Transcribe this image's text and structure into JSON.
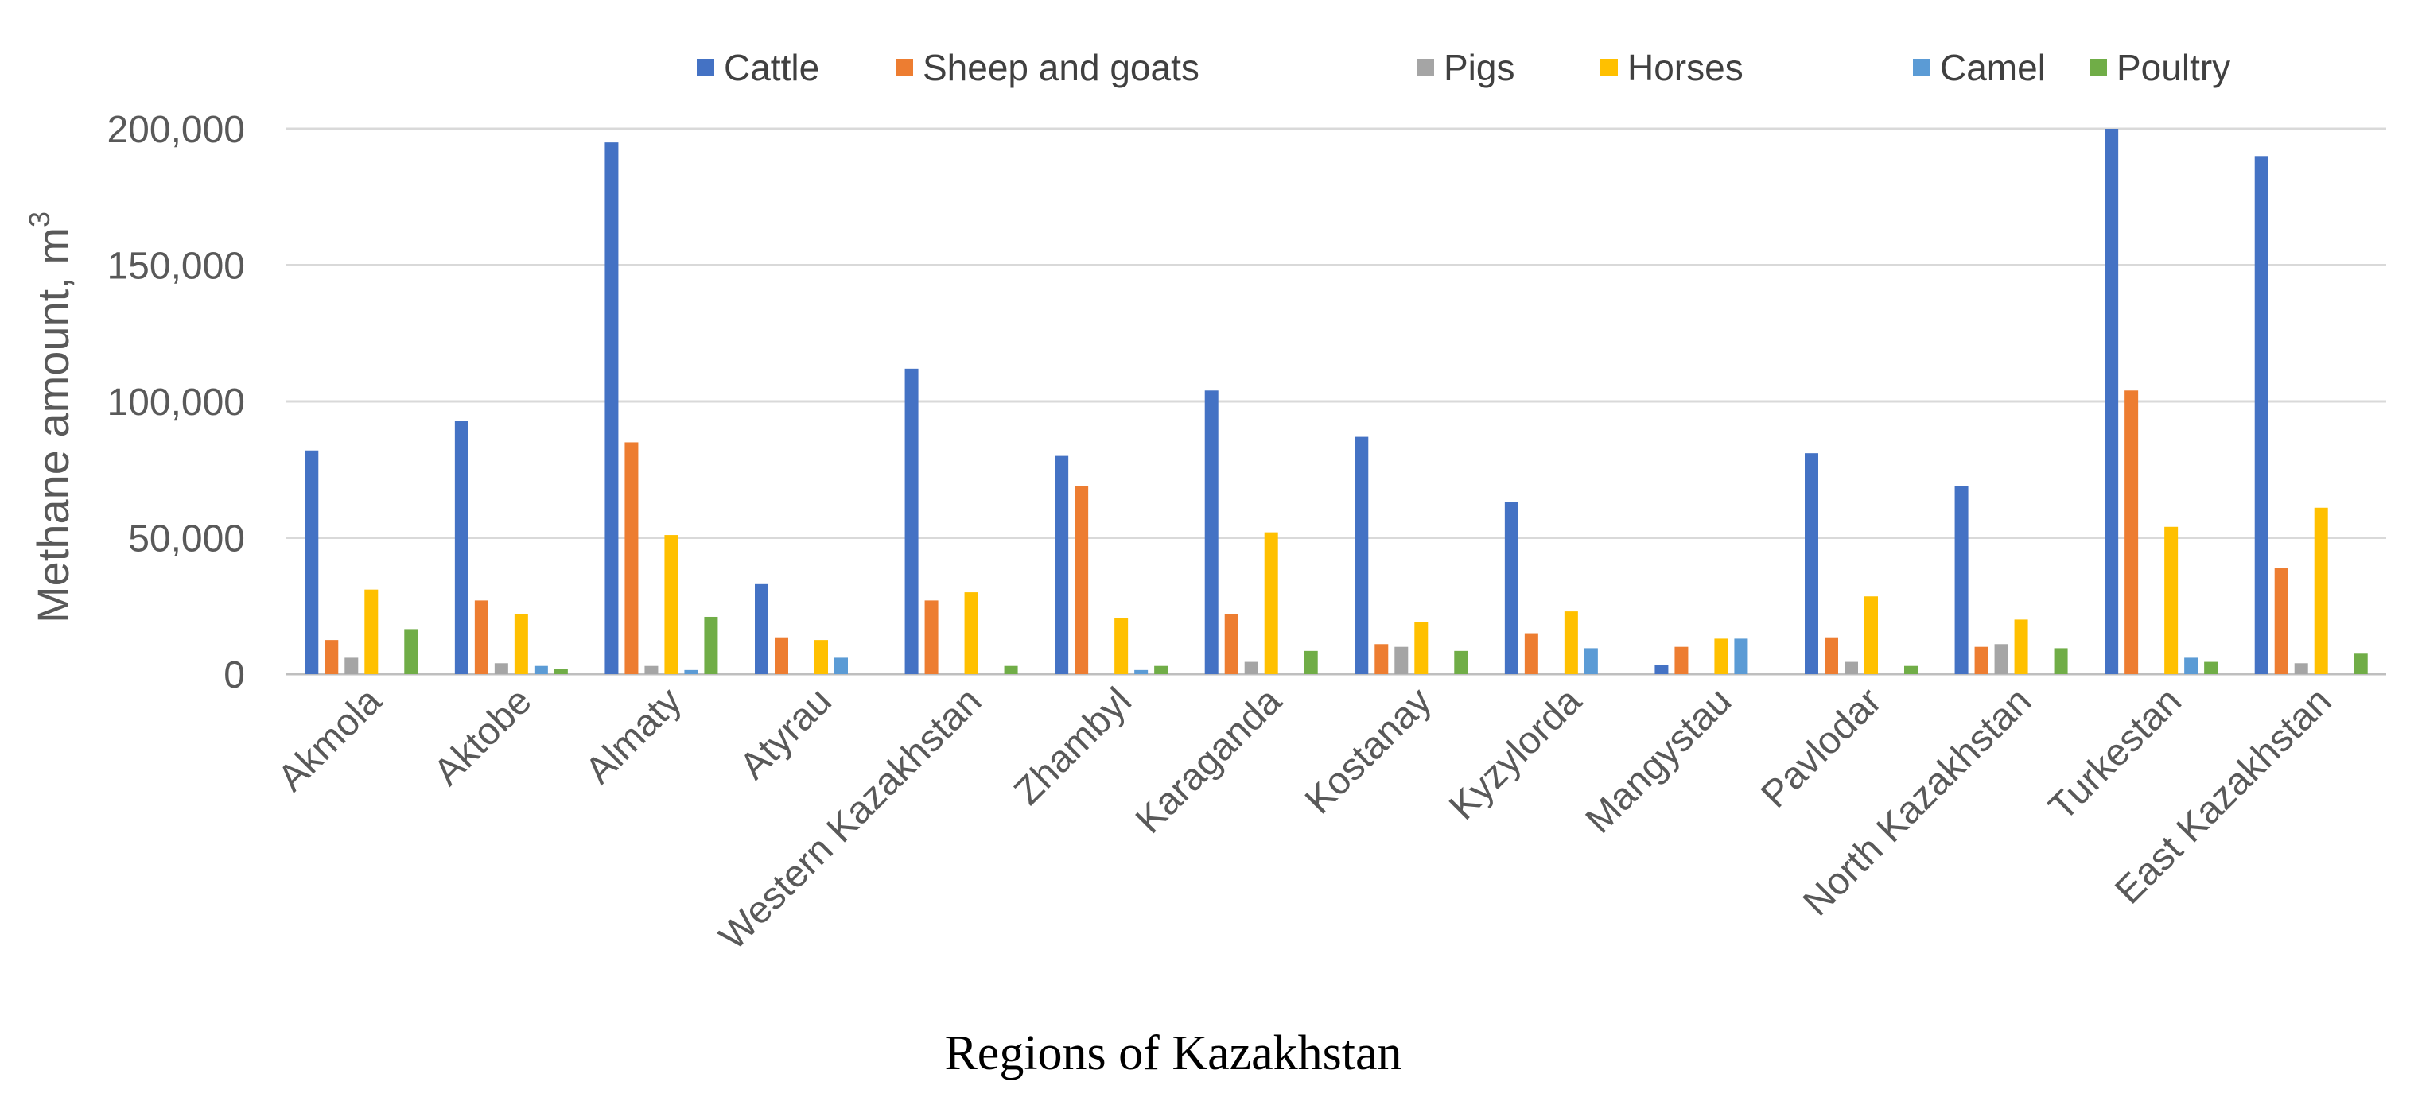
{
  "chart_data": {
    "type": "bar",
    "title": "",
    "xlabel": "Regions of Kazakhstan",
    "ylabel": "Methane amount, m",
    "ylabel_superscript": "3",
    "ylim": [
      0,
      200000
    ],
    "yticks": [
      0,
      50000,
      100000,
      150000,
      200000
    ],
    "ytick_labels": [
      "0",
      "50,000",
      "100,000",
      "150,000",
      "200,000"
    ],
    "grid": true,
    "legend_position": "top",
    "categories": [
      "Akmola",
      "Aktobe",
      "Almaty",
      "Atyrau",
      "Western Kazakhstan",
      "Zhambyl",
      "Karaganda",
      "Kostanay",
      "Kyzylorda",
      "Mangystau",
      "Pavlodar",
      "North Kazakhstan",
      "Turkestan",
      "East Kazakhstan"
    ],
    "series": [
      {
        "name": "Cattle",
        "color": "#4472c4",
        "values": [
          82000,
          93000,
          195000,
          33000,
          112000,
          80000,
          104000,
          87000,
          63000,
          3500,
          81000,
          69000,
          200000,
          190000
        ]
      },
      {
        "name": "Sheep and goats",
        "color": "#ed7d31",
        "values": [
          12500,
          27000,
          85000,
          13500,
          27000,
          69000,
          22000,
          11000,
          15000,
          10000,
          13500,
          10000,
          104000,
          39000
        ]
      },
      {
        "name": "Pigs",
        "color": "#a5a5a5",
        "values": [
          6000,
          4000,
          3000,
          0,
          0,
          0,
          4500,
          10000,
          0,
          0,
          4500,
          11000,
          0,
          4000
        ]
      },
      {
        "name": "Horses",
        "color": "#ffc000",
        "values": [
          31000,
          22000,
          51000,
          12500,
          30000,
          20500,
          52000,
          19000,
          23000,
          13000,
          28500,
          20000,
          54000,
          61000
        ]
      },
      {
        "name": "Camel",
        "color": "#5b9bd5",
        "values": [
          0,
          3000,
          1500,
          6000,
          0,
          1500,
          0,
          0,
          9500,
          13000,
          0,
          0,
          6000,
          0
        ]
      },
      {
        "name": "Poultry",
        "color": "#70ad47",
        "values": [
          16500,
          2000,
          21000,
          0,
          3000,
          3000,
          8500,
          8500,
          0,
          0,
          3000,
          9500,
          4500,
          7500
        ]
      }
    ]
  }
}
